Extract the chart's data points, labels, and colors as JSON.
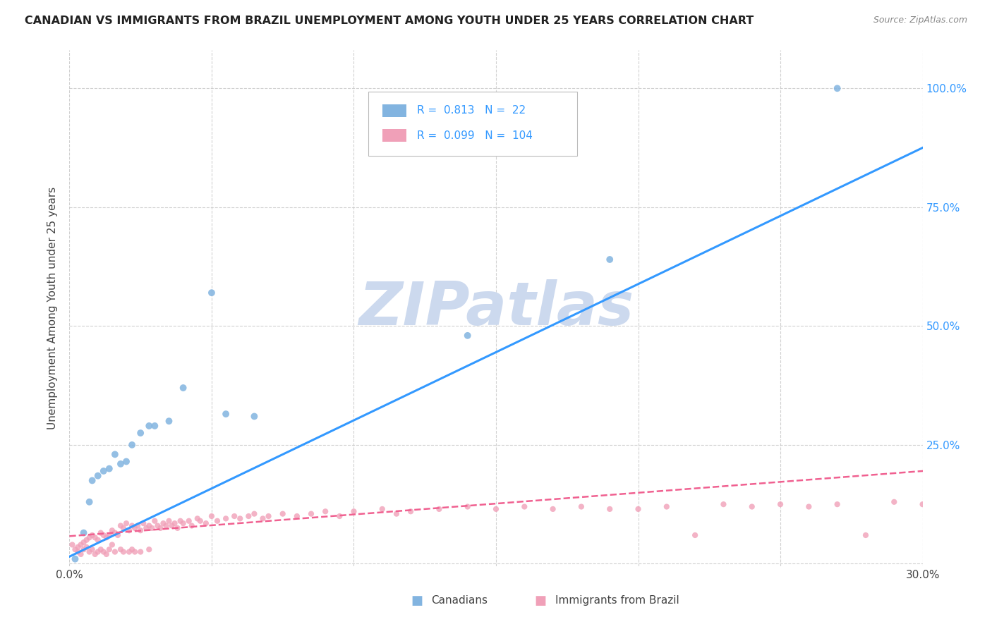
{
  "title": "CANADIAN VS IMMIGRANTS FROM BRAZIL UNEMPLOYMENT AMONG YOUTH UNDER 25 YEARS CORRELATION CHART",
  "source": "Source: ZipAtlas.com",
  "ylabel": "Unemployment Among Youth under 25 years",
  "xlim": [
    0.0,
    0.3
  ],
  "ylim": [
    -0.005,
    1.08
  ],
  "background_color": "#ffffff",
  "watermark_text": "ZIPatlas",
  "watermark_color": "#ccd9ee",
  "canadians_color": "#82b4e0",
  "brazil_color": "#f0a0b8",
  "regression_canadian_color": "#3399ff",
  "regression_brazil_color": "#f06090",
  "legend_R_canadian": "0.813",
  "legend_N_canadian": "22",
  "legend_R_brazil": "0.099",
  "legend_N_brazil": "104",
  "canadians_x": [
    0.002,
    0.005,
    0.007,
    0.008,
    0.01,
    0.012,
    0.014,
    0.016,
    0.018,
    0.02,
    0.022,
    0.025,
    0.028,
    0.03,
    0.035,
    0.04,
    0.05,
    0.055,
    0.065,
    0.14,
    0.19,
    0.27
  ],
  "canadians_y": [
    0.01,
    0.065,
    0.13,
    0.175,
    0.185,
    0.195,
    0.2,
    0.23,
    0.21,
    0.215,
    0.25,
    0.275,
    0.29,
    0.29,
    0.3,
    0.37,
    0.57,
    0.315,
    0.31,
    0.48,
    0.64,
    1.0
  ],
  "brazil_x": [
    0.001,
    0.002,
    0.003,
    0.003,
    0.004,
    0.004,
    0.005,
    0.005,
    0.006,
    0.006,
    0.007,
    0.007,
    0.008,
    0.008,
    0.009,
    0.009,
    0.01,
    0.01,
    0.011,
    0.011,
    0.012,
    0.012,
    0.013,
    0.013,
    0.014,
    0.014,
    0.015,
    0.015,
    0.016,
    0.016,
    0.017,
    0.018,
    0.018,
    0.019,
    0.019,
    0.02,
    0.021,
    0.021,
    0.022,
    0.022,
    0.023,
    0.023,
    0.024,
    0.025,
    0.025,
    0.026,
    0.027,
    0.028,
    0.028,
    0.029,
    0.03,
    0.031,
    0.032,
    0.033,
    0.034,
    0.035,
    0.036,
    0.037,
    0.038,
    0.039,
    0.04,
    0.042,
    0.043,
    0.045,
    0.046,
    0.048,
    0.05,
    0.052,
    0.055,
    0.058,
    0.06,
    0.063,
    0.065,
    0.068,
    0.07,
    0.075,
    0.08,
    0.085,
    0.09,
    0.095,
    0.1,
    0.11,
    0.115,
    0.12,
    0.13,
    0.14,
    0.15,
    0.16,
    0.17,
    0.18,
    0.19,
    0.2,
    0.21,
    0.22,
    0.23,
    0.24,
    0.25,
    0.26,
    0.27,
    0.28,
    0.29,
    0.3,
    0.31,
    0.32
  ],
  "brazil_y": [
    0.04,
    0.03,
    0.035,
    0.025,
    0.04,
    0.02,
    0.045,
    0.03,
    0.05,
    0.035,
    0.055,
    0.025,
    0.06,
    0.03,
    0.055,
    0.02,
    0.05,
    0.025,
    0.065,
    0.03,
    0.06,
    0.025,
    0.055,
    0.02,
    0.06,
    0.03,
    0.07,
    0.04,
    0.065,
    0.025,
    0.06,
    0.08,
    0.03,
    0.075,
    0.025,
    0.085,
    0.07,
    0.025,
    0.08,
    0.03,
    0.075,
    0.025,
    0.08,
    0.07,
    0.025,
    0.085,
    0.075,
    0.08,
    0.03,
    0.075,
    0.09,
    0.08,
    0.075,
    0.085,
    0.08,
    0.09,
    0.08,
    0.085,
    0.075,
    0.09,
    0.085,
    0.09,
    0.08,
    0.095,
    0.09,
    0.085,
    0.1,
    0.09,
    0.095,
    0.1,
    0.095,
    0.1,
    0.105,
    0.095,
    0.1,
    0.105,
    0.1,
    0.105,
    0.11,
    0.1,
    0.11,
    0.115,
    0.105,
    0.11,
    0.115,
    0.12,
    0.115,
    0.12,
    0.115,
    0.12,
    0.115,
    0.115,
    0.12,
    0.06,
    0.125,
    0.12,
    0.125,
    0.12,
    0.125,
    0.06,
    0.13,
    0.125,
    0.13,
    0.125
  ]
}
